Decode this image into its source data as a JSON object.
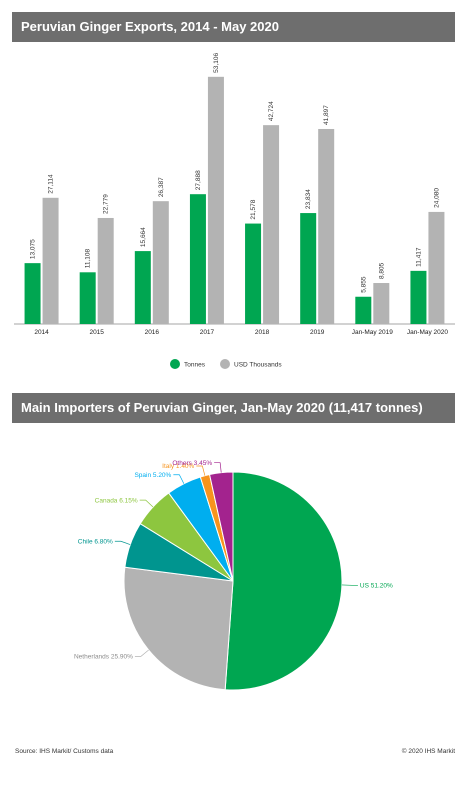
{
  "chart_data": [
    {
      "type": "bar",
      "title": "Peruvian Ginger Exports, 2014 - May 2020",
      "categories": [
        "2014",
        "2015",
        "2016",
        "2017",
        "2018",
        "2019",
        "Jan-May 2019",
        "Jan-May 2020"
      ],
      "series": [
        {
          "name": "Tonnes",
          "color": "#00a651",
          "values": [
            13075,
            11108,
            15664,
            27888,
            21578,
            23834,
            5855,
            11417
          ]
        },
        {
          "name": "USD Thousands",
          "color": "#b3b3b3",
          "values": [
            27114,
            22779,
            26387,
            53106,
            42724,
            41897,
            8805,
            24080
          ]
        }
      ],
      "value_labels": {
        "Tonnes": [
          "13,075",
          "11,108",
          "15,664",
          "27,888",
          "21,578",
          "23,834",
          "5,855",
          "11,417"
        ],
        "USD Thousands": [
          "27,114",
          "22,779",
          "26,387",
          "53,106",
          "42,724",
          "41,897",
          "8,805",
          "24,080"
        ]
      },
      "ylim": [
        0,
        55000
      ],
      "grid": false,
      "legend": "bottom-center"
    },
    {
      "type": "pie",
      "title": "Main Importers of Peruvian Ginger, Jan-May 2020 (11,417 tonnes)",
      "slices": [
        {
          "label": "US",
          "value": 51.2,
          "text": "US 51.20%",
          "color": "#00a651"
        },
        {
          "label": "Netherlands",
          "value": 25.9,
          "text": "Netherlands 25.90%",
          "color": "#b3b3b3"
        },
        {
          "label": "Chile",
          "value": 6.8,
          "text": "Chile 6.80%",
          "color": "#00958f"
        },
        {
          "label": "Canada",
          "value": 6.15,
          "text": "Canada 6.15%",
          "color": "#8dc63f"
        },
        {
          "label": "Spain",
          "value": 5.2,
          "text": "Spain 5.20%",
          "color": "#00aeef"
        },
        {
          "label": "Italy",
          "value": 1.4,
          "text": "Italy 1.40%",
          "color": "#f7941d"
        },
        {
          "label": "Others",
          "value": 3.45,
          "text": "Others 3.45%",
          "color": "#a3238e"
        }
      ]
    }
  ],
  "footer": {
    "source": "Source: IHS Markit/ Customs data",
    "copyright": "© 2020 IHS Markit"
  }
}
